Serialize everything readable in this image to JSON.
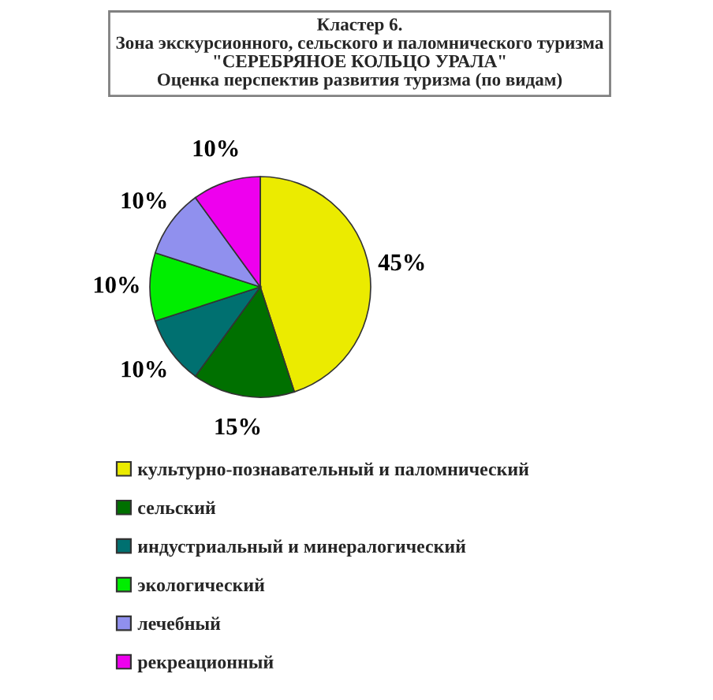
{
  "chart_data": {
    "type": "pie",
    "title": "Кластер 6.\nЗона экскурсионного, сельского и паломнического туризма\n\"СЕРЕБРЯНОЕ КОЛЬЦО УРАЛА\"\nОценка перспектив развития туризма (по видам)",
    "categories": [
      "культурно-познавательный и паломнический",
      "сельский",
      "индустриальный и минералогический",
      "экологический",
      "лечебный",
      "рекреационный"
    ],
    "values": [
      45,
      15,
      10,
      10,
      10,
      10
    ],
    "value_labels": [
      "45%",
      "15%",
      "10%",
      "10%",
      "10%",
      "10%"
    ],
    "colors": [
      "#ebeb00",
      "#007000",
      "#007070",
      "#00ee00",
      "#9090ee",
      "#ee00ee"
    ],
    "legend": "bottom"
  }
}
